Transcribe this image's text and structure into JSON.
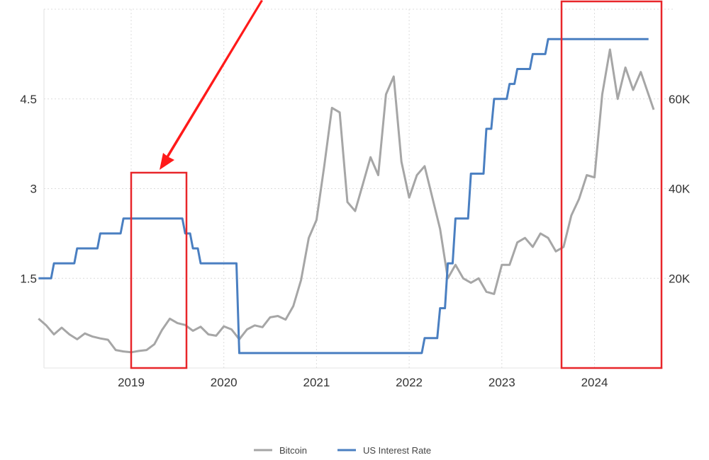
{
  "chart_data": {
    "type": "line",
    "title": "",
    "xlabel": "",
    "ylabel_left": "",
    "ylabel_right": "",
    "x_range": [
      "2018-01",
      "2024-08"
    ],
    "ylim_left": [
      0,
      6
    ],
    "ylim_right": [
      0,
      80000
    ],
    "grid": true,
    "legend_placement": "bottom",
    "x_ticks": [
      "2019",
      "2020",
      "2021",
      "2022",
      "2023",
      "2024"
    ],
    "left_ticks": [
      "1.5",
      "3",
      "4.5"
    ],
    "left_tick_values": [
      1.5,
      3,
      4.5
    ],
    "right_ticks": [
      "20K",
      "40K",
      "60K"
    ],
    "right_tick_values": [
      20000,
      40000,
      60000
    ],
    "series": [
      {
        "name": "Bitcoin",
        "axis": "right",
        "color": "#a6a6a6",
        "x": [
          "2018-01",
          "2018-02",
          "2018-03",
          "2018-04",
          "2018-05",
          "2018-06",
          "2018-07",
          "2018-08",
          "2018-09",
          "2018-10",
          "2018-11",
          "2018-12",
          "2019-01",
          "2019-02",
          "2019-03",
          "2019-04",
          "2019-05",
          "2019-06",
          "2019-07",
          "2019-08",
          "2019-09",
          "2019-10",
          "2019-11",
          "2019-12",
          "2020-01",
          "2020-02",
          "2020-03",
          "2020-04",
          "2020-05",
          "2020-06",
          "2020-07",
          "2020-08",
          "2020-09",
          "2020-10",
          "2020-11",
          "2020-12",
          "2021-01",
          "2021-02",
          "2021-03",
          "2021-04",
          "2021-05",
          "2021-06",
          "2021-07",
          "2021-08",
          "2021-09",
          "2021-10",
          "2021-11",
          "2021-12",
          "2022-01",
          "2022-02",
          "2022-03",
          "2022-04",
          "2022-05",
          "2022-06",
          "2022-07",
          "2022-08",
          "2022-09",
          "2022-10",
          "2022-11",
          "2022-12",
          "2023-01",
          "2023-02",
          "2023-03",
          "2023-04",
          "2023-05",
          "2023-06",
          "2023-07",
          "2023-08",
          "2023-09",
          "2023-10",
          "2023-11",
          "2023-12",
          "2024-01",
          "2024-02",
          "2024-03",
          "2024-04",
          "2024-05",
          "2024-06",
          "2024-07",
          "2024-08"
        ],
        "values": [
          11000,
          9500,
          7500,
          9000,
          7500,
          6400,
          7700,
          7000,
          6600,
          6300,
          4000,
          3700,
          3500,
          3800,
          4000,
          5300,
          8500,
          11000,
          10000,
          9600,
          8300,
          9200,
          7500,
          7200,
          9300,
          8600,
          6400,
          8600,
          9500,
          9100,
          11300,
          11600,
          10800,
          13800,
          19600,
          29000,
          33000,
          45000,
          58000,
          57000,
          37000,
          35000,
          41000,
          47000,
          43000,
          61000,
          65000,
          46000,
          38000,
          43000,
          45000,
          38000,
          31000,
          20000,
          23000,
          20000,
          19000,
          20000,
          17000,
          16500,
          23000,
          23000,
          28000,
          29000,
          27000,
          30000,
          29000,
          26000,
          27000,
          34000,
          37700,
          43000,
          42500,
          61000,
          71000,
          60000,
          67000,
          62000,
          66000,
          57600
        ]
      },
      {
        "name": "US Interest Rate",
        "axis": "left",
        "color": "#4a7fc1",
        "step": true,
        "x": [
          "2018-01",
          "2018-03",
          "2018-06",
          "2018-09",
          "2018-12",
          "2019-08",
          "2019-09",
          "2019-10",
          "2020-03",
          "2022-03",
          "2022-05",
          "2022-06",
          "2022-07",
          "2022-09",
          "2022-11",
          "2022-12",
          "2023-02",
          "2023-03",
          "2023-05",
          "2023-07",
          "2024-08"
        ],
        "values": [
          1.5,
          1.75,
          2.0,
          2.25,
          2.5,
          2.25,
          2.0,
          1.75,
          0.25,
          0.5,
          1.0,
          1.75,
          2.5,
          3.25,
          4.0,
          4.5,
          4.75,
          5.0,
          5.25,
          5.5,
          5.5
        ]
      }
    ],
    "annotations": {
      "highlight_boxes": [
        {
          "from": "2019-01",
          "to": "2019-08",
          "color": "#e8262a"
        },
        {
          "from": "2023-09",
          "to": "2024-08",
          "color": "#e8262a"
        }
      ],
      "arrow_color": "#ff1a1a"
    }
  }
}
